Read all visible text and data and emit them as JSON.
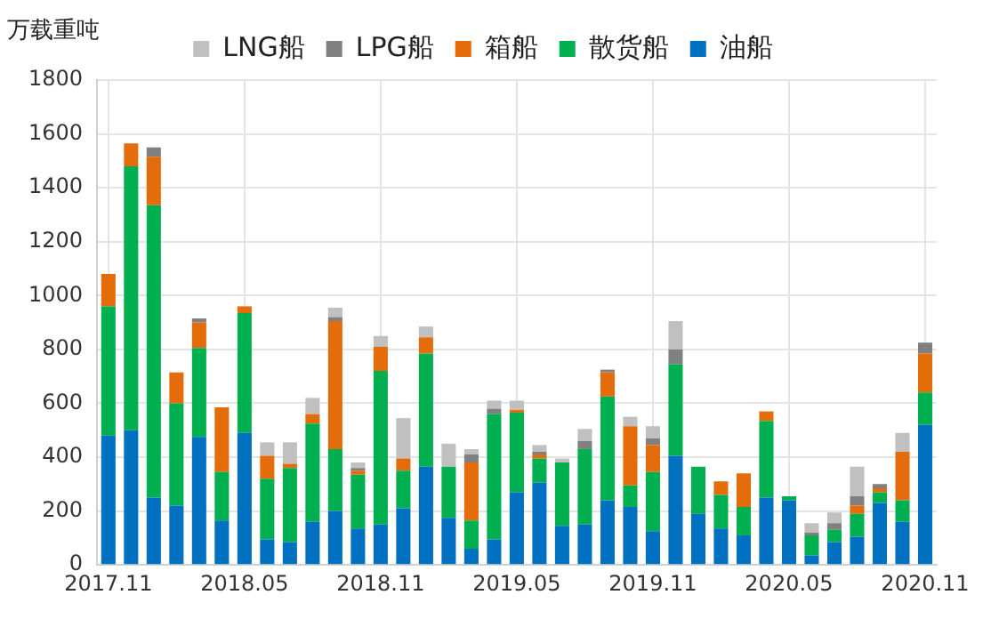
{
  "chart_data": {
    "type": "bar",
    "stacked": true,
    "ylabel": "万载重吨",
    "categories": [
      "2017.11",
      null,
      null,
      null,
      null,
      null,
      "2018.05",
      null,
      null,
      null,
      null,
      null,
      "2018.11",
      null,
      null,
      null,
      null,
      null,
      "2019.05",
      null,
      null,
      null,
      null,
      null,
      "2019.11",
      null,
      null,
      null,
      null,
      null,
      "2020.05",
      null,
      null,
      null,
      null,
      null,
      "2020.11"
    ],
    "series": [
      {
        "name": "油船",
        "color": "#0070c0",
        "values": [
          480,
          500,
          250,
          220,
          475,
          165,
          490,
          95,
          85,
          160,
          200,
          135,
          150,
          210,
          365,
          175,
          60,
          95,
          270,
          305,
          145,
          150,
          240,
          215,
          125,
          405,
          190,
          135,
          110,
          250,
          240,
          35,
          85,
          105,
          230,
          160,
          520
        ]
      },
      {
        "name": "散货船",
        "color": "#00b050",
        "values": [
          480,
          980,
          1085,
          380,
          330,
          180,
          445,
          225,
          275,
          365,
          230,
          200,
          570,
          140,
          420,
          190,
          105,
          465,
          295,
          90,
          235,
          280,
          385,
          80,
          220,
          340,
          175,
          125,
          105,
          285,
          15,
          75,
          45,
          85,
          40,
          80,
          120
        ]
      },
      {
        "name": "箱船",
        "color": "#e46c0a",
        "values": [
          120,
          85,
          180,
          115,
          95,
          240,
          25,
          85,
          15,
          35,
          475,
          15,
          90,
          45,
          60,
          0,
          215,
          0,
          10,
          15,
          0,
          0,
          90,
          220,
          100,
          0,
          0,
          50,
          125,
          35,
          0,
          0,
          0,
          30,
          15,
          180,
          145
        ]
      },
      {
        "name": "LPG船",
        "color": "#808080",
        "values": [
          0,
          0,
          35,
          0,
          15,
          0,
          0,
          0,
          0,
          0,
          15,
          10,
          0,
          0,
          0,
          0,
          30,
          20,
          0,
          10,
          0,
          30,
          10,
          0,
          25,
          55,
          0,
          0,
          0,
          0,
          0,
          10,
          25,
          35,
          15,
          0,
          40
        ]
      },
      {
        "name": "LNG船",
        "color": "#c0c0c0",
        "values": [
          0,
          0,
          0,
          0,
          0,
          0,
          0,
          50,
          80,
          60,
          35,
          20,
          40,
          150,
          40,
          85,
          20,
          30,
          35,
          25,
          15,
          45,
          0,
          35,
          45,
          105,
          0,
          0,
          0,
          0,
          0,
          35,
          40,
          110,
          0,
          70,
          0
        ]
      }
    ],
    "ylim": [
      0,
      1800
    ],
    "yticks": [
      0,
      200,
      400,
      600,
      800,
      1000,
      1200,
      1400,
      1600,
      1800
    ],
    "grid": true,
    "legend": "top"
  }
}
